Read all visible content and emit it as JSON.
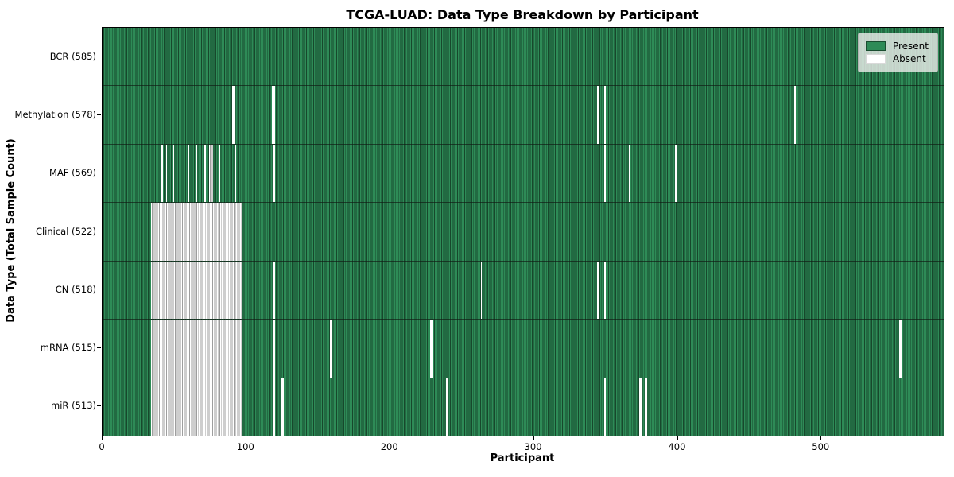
{
  "title": "TCGA-LUAD: Data Type Breakdown by Participant",
  "xlabel": "Participant",
  "ylabel": "Data Type (Total Sample Count)",
  "legend": {
    "present_label": "Present",
    "absent_label": "Absent"
  },
  "colors": {
    "figure_bg": "#ffffff",
    "present_fill": "#2e8b57",
    "present_edge": "#17482c",
    "absent_fill": "#ffffff",
    "absent_edge": "#9e9e9e",
    "legend_bg": "rgba(233,235,233,0.82)",
    "present_swatch_border": "#1a4d30",
    "absent_swatch_border": "#d9d9d9"
  },
  "chart_data": {
    "type": "heatmap",
    "title": "TCGA-LUAD: Data Type Breakdown by Participant",
    "xlabel": "Participant",
    "ylabel": "Data Type (Total Sample Count)",
    "n_participants": 585,
    "x_ticks": [
      0,
      100,
      200,
      300,
      400,
      500
    ],
    "xlim": [
      0,
      585
    ],
    "legend_entries": [
      "Present",
      "Absent"
    ],
    "legend_position": "upper right",
    "grid": false,
    "rows": [
      {
        "label": "BCR (585)",
        "data_type": "BCR",
        "present_count": 585,
        "absent_runs": []
      },
      {
        "label": "Methylation (578)",
        "data_type": "Methylation",
        "present_count": 578,
        "absent_runs": [
          [
            90,
            91
          ],
          [
            118,
            119
          ],
          [
            344,
            344
          ],
          [
            349,
            349
          ],
          [
            481,
            481
          ]
        ]
      },
      {
        "label": "MAF (569)",
        "data_type": "MAF",
        "present_count": 569,
        "absent_runs": [
          [
            41,
            41
          ],
          [
            44,
            44
          ],
          [
            49,
            49
          ],
          [
            59,
            59
          ],
          [
            65,
            65
          ],
          [
            70,
            71
          ],
          [
            74,
            76
          ],
          [
            81,
            81
          ],
          [
            92,
            92
          ],
          [
            119,
            119
          ],
          [
            349,
            349
          ],
          [
            366,
            366
          ],
          [
            398,
            398
          ]
        ]
      },
      {
        "label": "Clinical (522)",
        "data_type": "Clinical",
        "present_count": 522,
        "absent_runs": [
          [
            34,
            96
          ]
        ]
      },
      {
        "label": "CN (518)",
        "data_type": "CN",
        "present_count": 518,
        "absent_runs": [
          [
            34,
            96
          ],
          [
            119,
            119
          ],
          [
            263,
            263
          ],
          [
            344,
            344
          ],
          [
            349,
            349
          ]
        ]
      },
      {
        "label": "mRNA (515)",
        "data_type": "mRNA",
        "present_count": 515,
        "absent_runs": [
          [
            34,
            96
          ],
          [
            119,
            119
          ],
          [
            158,
            158
          ],
          [
            228,
            229
          ],
          [
            326,
            326
          ],
          [
            554,
            555
          ]
        ]
      },
      {
        "label": "miR (513)",
        "data_type": "miR",
        "present_count": 513,
        "absent_runs": [
          [
            34,
            96
          ],
          [
            119,
            119
          ],
          [
            124,
            125
          ],
          [
            239,
            239
          ],
          [
            349,
            349
          ],
          [
            373,
            374
          ],
          [
            377,
            378
          ]
        ]
      }
    ]
  }
}
